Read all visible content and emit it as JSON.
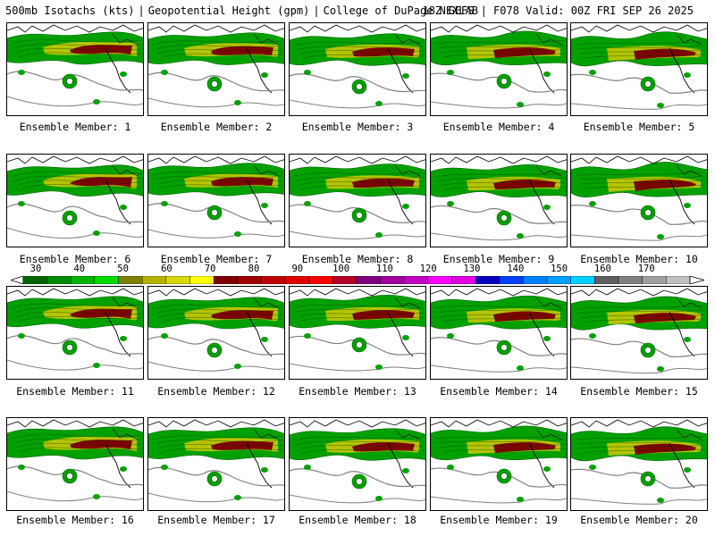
{
  "header": {
    "left": "500mb Isotachs (kts)",
    "mid1": "Geopotential Height (gpm)",
    "mid2": "College of DuPage NEXLAB",
    "right": "18Z GEFS | F078 Valid: 00Z FRI SEP 26 2025"
  },
  "members": [
    "Ensemble Member: 1",
    "Ensemble Member: 2",
    "Ensemble Member: 3",
    "Ensemble Member: 4",
    "Ensemble Member: 5",
    "Ensemble Member: 6",
    "Ensemble Member: 7",
    "Ensemble Member: 8",
    "Ensemble Member: 9",
    "Ensemble Member: 10",
    "Ensemble Member: 11",
    "Ensemble Member: 12",
    "Ensemble Member: 13",
    "Ensemble Member: 14",
    "Ensemble Member: 15",
    "Ensemble Member: 16",
    "Ensemble Member: 17",
    "Ensemble Member: 18",
    "Ensemble Member: 19",
    "Ensemble Member: 20"
  ],
  "colorbar": {
    "ticks": [
      "30",
      "40",
      "50",
      "60",
      "70",
      "80",
      "90",
      "100",
      "110",
      "120",
      "130",
      "140",
      "150",
      "160",
      "170"
    ],
    "colors": [
      "#006400",
      "#008c00",
      "#00b400",
      "#00dc00",
      "#808000",
      "#b4b400",
      "#d8d800",
      "#ffff00",
      "#800000",
      "#a00000",
      "#c00000",
      "#e00000",
      "#ff0000",
      "#b40028",
      "#800080",
      "#a000a0",
      "#c000c0",
      "#ff00ff",
      "#e000e0",
      "#0000c0",
      "#0040ff",
      "#0080ff",
      "#00a0ff",
      "#00d0ff",
      "#606060",
      "#808080",
      "#a0a0a0",
      "#c0c0c0"
    ]
  },
  "theme": {
    "jet_green": "#00a000",
    "jet_core": "#800000",
    "jet_yellow": "#c8c800",
    "contour": "#808080"
  }
}
